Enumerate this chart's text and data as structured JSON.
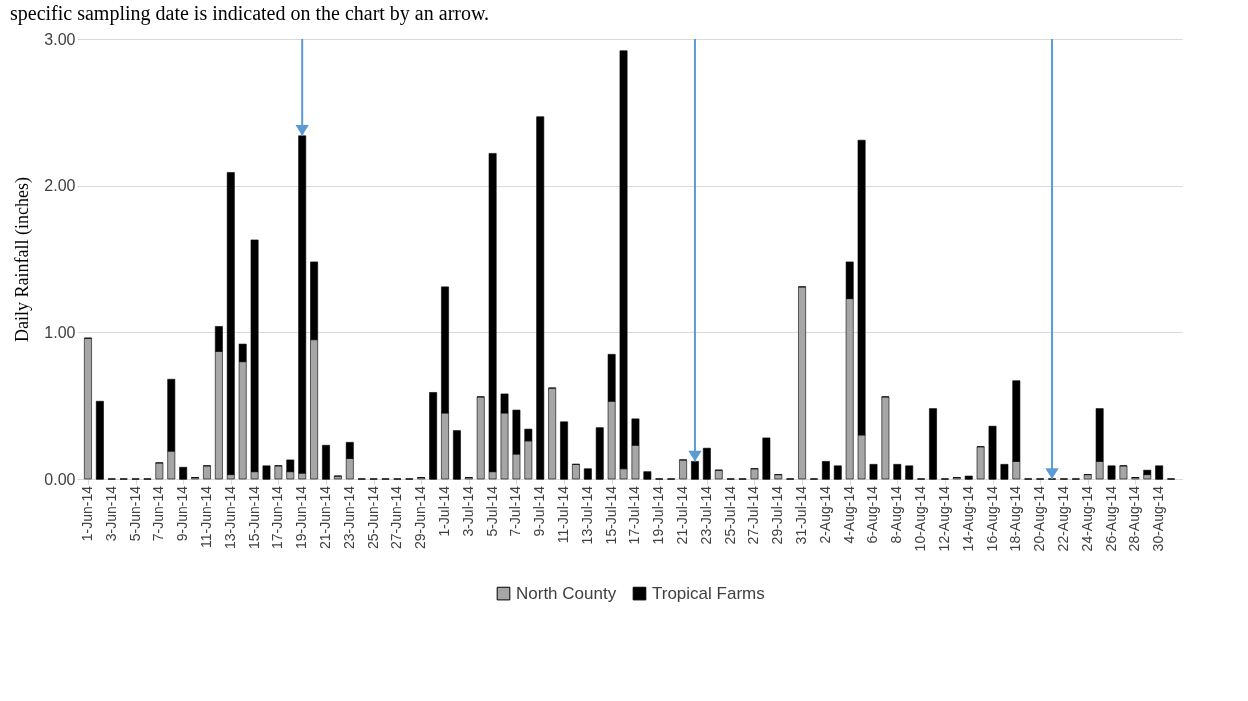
{
  "chart_data": {
    "type": "bar",
    "stacked": true,
    "ylabel": "Daily Rainfall (inches)",
    "annotations": [
      "specific sampling date is indicated on the chart by an arrow."
    ],
    "x": [
      "--06-01",
      "--06-02",
      "--06-03",
      "--06-04",
      "--06-05",
      "--06-06",
      "--06-07",
      "--06-08",
      "--06-09",
      "--06-10",
      "--06-11",
      "--06-12",
      "--06-13",
      "--06-14",
      "--06-15",
      "--06-16",
      "--06-17",
      "--06-18",
      "--06-19",
      "--06-20",
      "--06-21",
      "--06-22",
      "--06-23",
      "--06-24",
      "--06-25",
      "--06-26",
      "--06-27",
      "--06-28",
      "--06-29",
      "--06-30",
      "--07-01",
      "--07-02",
      "--07-03",
      "--07-04",
      "--07-05",
      "--07-06",
      "--07-07",
      "--07-08",
      "--07-09",
      "--07-10",
      "--07-11",
      "--07-12",
      "--07-13",
      "--07-14",
      "--07-15",
      "--07-16",
      "--07-17",
      "--07-18",
      "--07-19",
      "--07-20",
      "--07-21",
      "--07-22",
      "--07-23",
      "--07-24",
      "--07-25",
      "--07-26",
      "--07-27",
      "--07-28",
      "--07-29",
      "--07-30",
      "--07-31",
      "--08-01",
      "--08-02",
      "--08-03",
      "--08-04",
      "--08-05",
      "--08-06",
      "--08-07",
      "--08-08",
      "--08-09",
      "--08-10",
      "--08-11",
      "--08-12",
      "--08-13",
      "--08-14",
      "--08-15",
      "--08-16",
      "--08-17",
      "--08-18",
      "--08-19",
      "--08-20",
      "--08-21",
      "--08-22",
      "--08-23",
      "--08-24",
      "--08-25",
      "--08-26",
      "--08-27",
      "--08-28",
      "--08-29",
      "--08-30",
      "--08-31"
    ],
    "xlim": [
      "--05-31T12:00",
      "--08-31T12:00"
    ],
    "xticks": [
      {
        "value": "--06-01",
        "label": "1-Jun-14"
      },
      {
        "value": "--06-03",
        "label": "3-Jun-14"
      },
      {
        "value": "--06-05",
        "label": "5-Jun-14"
      },
      {
        "value": "--06-07",
        "label": "7-Jun-14"
      },
      {
        "value": "--06-09",
        "label": "9-Jun-14"
      },
      {
        "value": "--06-11",
        "label": "11-Jun-14"
      },
      {
        "value": "--06-13",
        "label": "13-Jun-14"
      },
      {
        "value": "--06-15",
        "label": "15-Jun-14"
      },
      {
        "value": "--06-17",
        "label": "17-Jun-14"
      },
      {
        "value": "--06-19",
        "label": "19-Jun-14"
      },
      {
        "value": "--06-21",
        "label": "21-Jun-14"
      },
      {
        "value": "--06-23",
        "label": "23-Jun-14"
      },
      {
        "value": "--06-25",
        "label": "25-Jun-14"
      },
      {
        "value": "--06-27",
        "label": "27-Jun-14"
      },
      {
        "value": "--06-29",
        "label": "29-Jun-14"
      },
      {
        "value": "--07-01",
        "label": "1-Jul-14"
      },
      {
        "value": "--07-03",
        "label": "3-Jul-14"
      },
      {
        "value": "--07-05",
        "label": "5-Jul-14"
      },
      {
        "value": "--07-07",
        "label": "7-Jul-14"
      },
      {
        "value": "--07-09",
        "label": "9-Jul-14"
      },
      {
        "value": "--07-11",
        "label": "11-Jul-14"
      },
      {
        "value": "--07-13",
        "label": "13-Jul-14"
      },
      {
        "value": "--07-15",
        "label": "15-Jul-14"
      },
      {
        "value": "--07-17",
        "label": "17-Jul-14"
      },
      {
        "value": "--07-19",
        "label": "19-Jul-14"
      },
      {
        "value": "--07-21",
        "label": "21-Jul-14"
      },
      {
        "value": "--07-23",
        "label": "23-Jul-14"
      },
      {
        "value": "--07-25",
        "label": "25-Jul-14"
      },
      {
        "value": "--07-27",
        "label": "27-Jul-14"
      },
      {
        "value": "--07-29",
        "label": "29-Jul-14"
      },
      {
        "value": "--07-31",
        "label": "31-Jul-14"
      },
      {
        "value": "--08-02",
        "label": "2-Aug-14"
      },
      {
        "value": "--08-04",
        "label": "4-Aug-14"
      },
      {
        "value": "--08-06",
        "label": "6-Aug-14"
      },
      {
        "value": "--08-08",
        "label": "8-Aug-14"
      },
      {
        "value": "--08-10",
        "label": "10-Aug-14"
      },
      {
        "value": "--08-12",
        "label": "12-Aug-14"
      },
      {
        "value": "--08-14",
        "label": "14-Aug-14"
      },
      {
        "value": "--08-16",
        "label": "16-Aug-14"
      },
      {
        "value": "--08-18",
        "label": "18-Aug-14"
      },
      {
        "value": "--08-20",
        "label": "20-Aug-14"
      },
      {
        "value": "--08-22",
        "label": "22-Aug-14"
      },
      {
        "value": "--08-24",
        "label": "24-Aug-14"
      },
      {
        "value": "--08-26",
        "label": "26-Aug-14"
      },
      {
        "value": "--08-28",
        "label": "28-Aug-14"
      },
      {
        "value": "--08-30",
        "label": "30-Aug-14"
      }
    ],
    "ylim": [
      0,
      3
    ],
    "yticks": [
      {
        "value": 0,
        "label": "0.00"
      },
      {
        "value": 1,
        "label": "1.00"
      },
      {
        "value": 2,
        "label": "2.00"
      },
      {
        "value": 3,
        "label": "3.00"
      }
    ],
    "grid": "y",
    "legend": "bottom",
    "series": [
      {
        "name": "North County",
        "color": "#a6a6a6",
        "values": [
          0.96,
          0,
          0,
          0,
          0,
          0,
          0.11,
          0.19,
          0,
          0.01,
          0.09,
          0.87,
          0.03,
          0.8,
          0.05,
          0,
          0.09,
          0.05,
          0.04,
          0.95,
          0,
          0.02,
          0.14,
          0,
          0,
          0,
          0,
          0,
          0.01,
          0,
          0.45,
          0,
          0.01,
          0.56,
          0.05,
          0.45,
          0.17,
          0.26,
          0,
          0.62,
          0,
          0.1,
          0,
          0,
          0.53,
          0.07,
          0.23,
          0,
          0,
          0,
          0.13,
          0,
          0,
          0.06,
          0,
          0,
          0.07,
          0,
          0.03,
          0,
          1.31,
          0,
          0,
          0,
          1.23,
          0.3,
          0,
          0.56,
          0,
          0,
          0,
          0,
          0,
          0.01,
          0,
          0.22,
          0,
          0,
          0.12,
          0,
          0,
          0,
          0,
          0,
          0.03,
          0.12,
          0,
          0.09,
          0.01,
          0.03,
          0,
          0
        ]
      },
      {
        "name": "Tropical Farms",
        "color": "#000000",
        "values": [
          0,
          0.53,
          0,
          0,
          0,
          0,
          0,
          0.49,
          0.08,
          0,
          0,
          0.17,
          2.06,
          0.12,
          1.58,
          0.09,
          0,
          0.08,
          2.3,
          0.53,
          0.23,
          0,
          0.11,
          0,
          0,
          0,
          0,
          0,
          0,
          0.59,
          0.86,
          0.33,
          0,
          0,
          2.17,
          0.13,
          0.3,
          0.08,
          2.47,
          0,
          0.39,
          0,
          0.07,
          0.35,
          0.32,
          2.85,
          0.18,
          0.05,
          0,
          0,
          0,
          0.12,
          0.21,
          0,
          0,
          0,
          0,
          0.28,
          0,
          0,
          0,
          0,
          0.12,
          0.09,
          0.25,
          2.01,
          0.1,
          0,
          0.1,
          0.09,
          0,
          0.48,
          0,
          0,
          0.02,
          0,
          0.36,
          0.1,
          0.55,
          0,
          0,
          0,
          0,
          0,
          0,
          0.36,
          0.09,
          0,
          0,
          0.03,
          0.09,
          0
        ]
      }
    ],
    "ref_lines": [
      {
        "axis": "x",
        "value": "--06-19",
        "color": "#5b9bd5"
      },
      {
        "axis": "x",
        "value": "--07-22",
        "color": "#5b9bd5"
      },
      {
        "axis": "x",
        "value": "--08-21",
        "color": "#5b9bd5"
      }
    ]
  }
}
